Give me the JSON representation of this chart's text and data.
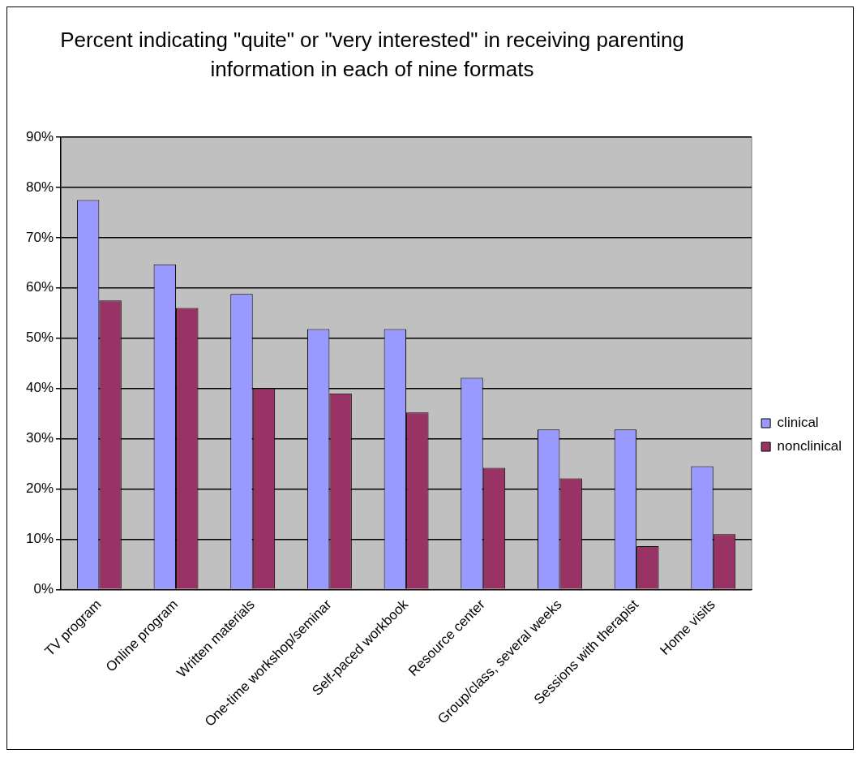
{
  "chart_data": {
    "type": "bar",
    "title": "Percent indicating \"quite\" or \"very interested\" in receiving parenting information in each of nine formats",
    "categories": [
      "TV program",
      "Online program",
      "Written materials",
      "One-time workshop/seminar",
      "Self-paced workbook",
      "Resource center",
      "Group/class, several weeks",
      "Sessions with therapist",
      "Home visits"
    ],
    "series": [
      {
        "name": "clinical",
        "color": "#9999ff",
        "values": [
          77.5,
          64.7,
          58.8,
          51.8,
          51.8,
          42.1,
          31.8,
          31.8,
          24.5
        ]
      },
      {
        "name": "nonclinical",
        "color": "#993366",
        "values": [
          57.5,
          56,
          40,
          39,
          35.2,
          24.2,
          22.1,
          8.6,
          11
        ]
      }
    ],
    "ylim": [
      0,
      90
    ],
    "yticks": [
      {
        "value": 0,
        "label": "0%"
      },
      {
        "value": 10,
        "label": "10%"
      },
      {
        "value": 20,
        "label": "20%"
      },
      {
        "value": 30,
        "label": "30%"
      },
      {
        "value": 40,
        "label": "40%"
      },
      {
        "value": 50,
        "label": "50%"
      },
      {
        "value": 60,
        "label": "60%"
      },
      {
        "value": 70,
        "label": "70%"
      },
      {
        "value": 80,
        "label": "80%"
      },
      {
        "value": 90,
        "label": "90%"
      }
    ],
    "grid": "y",
    "legend": "right"
  }
}
